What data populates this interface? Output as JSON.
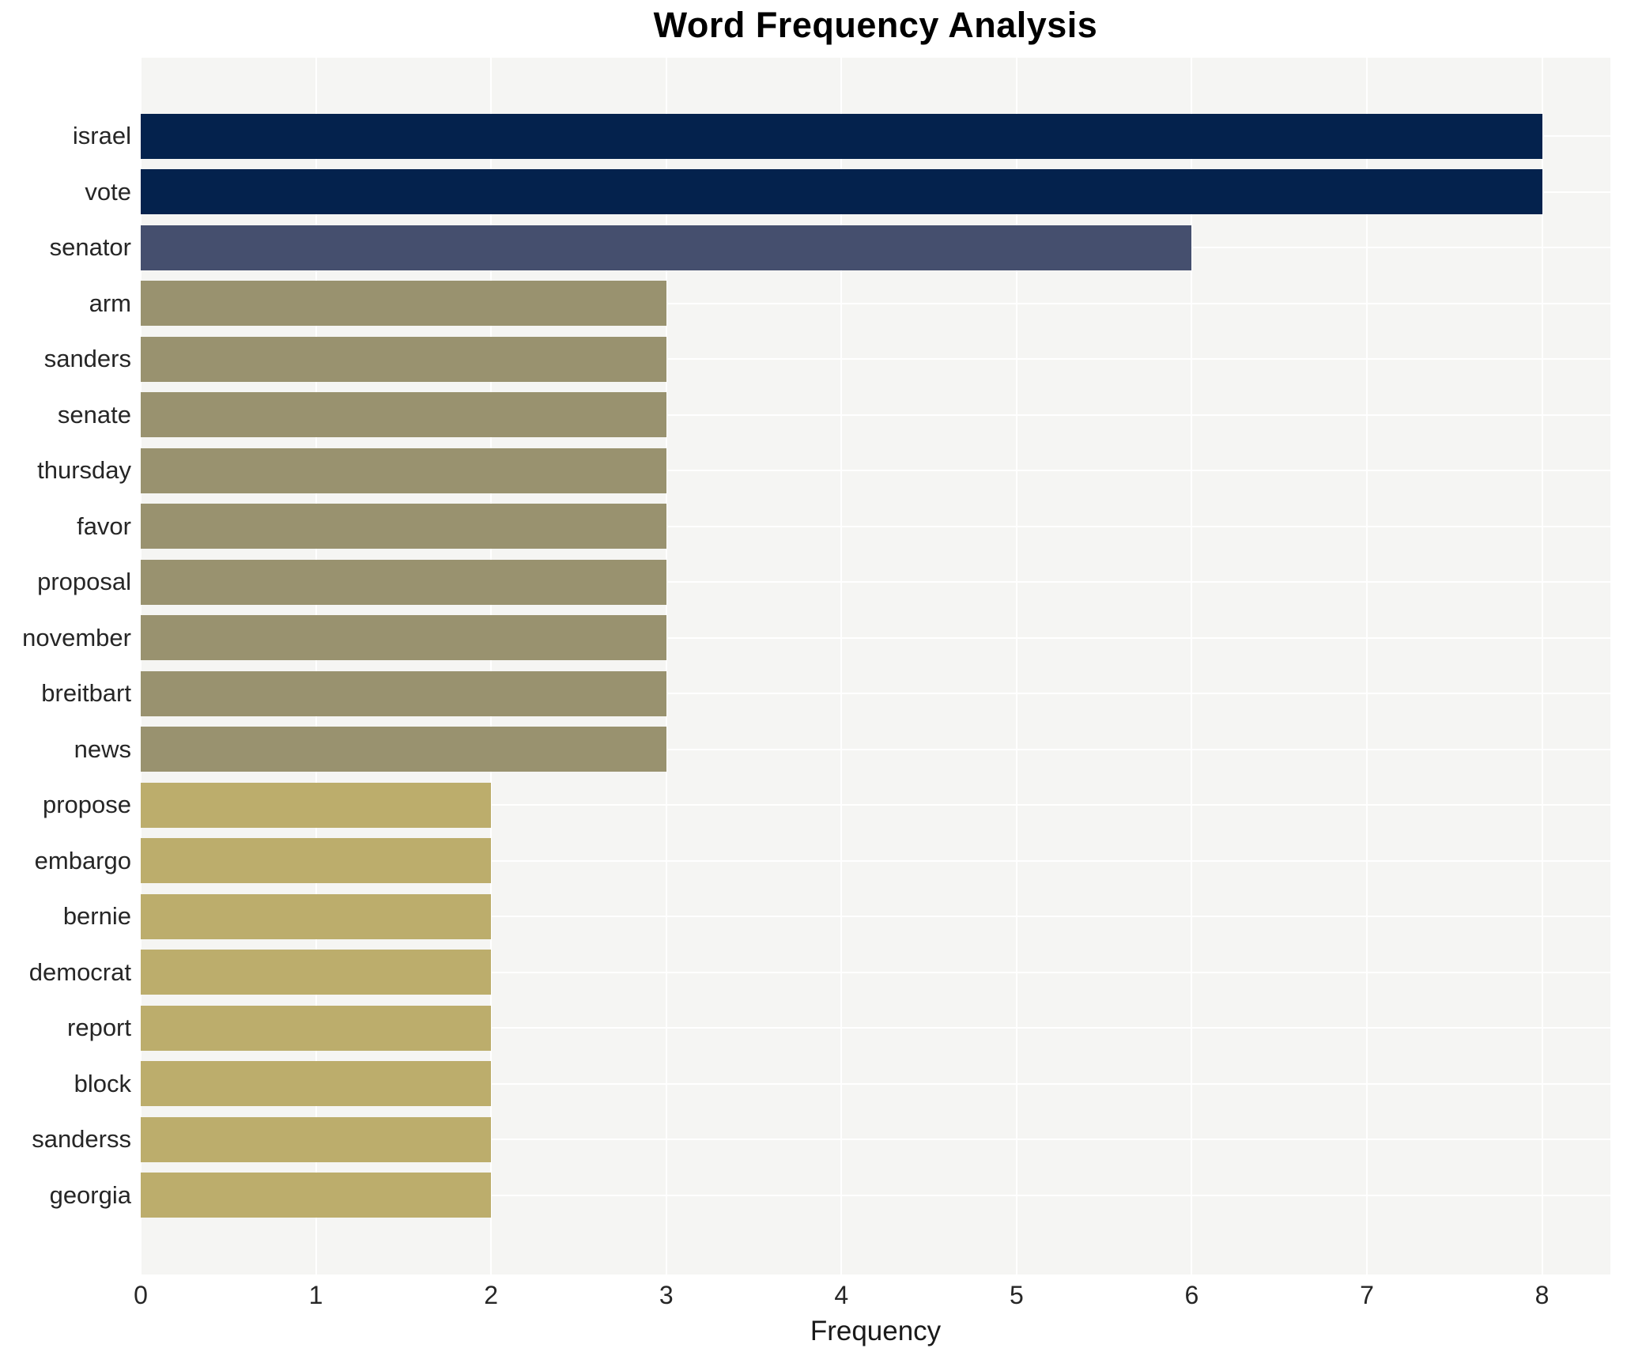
{
  "chart_data": {
    "type": "bar",
    "orientation": "horizontal",
    "title": "Word Frequency Analysis",
    "xlabel": "Frequency",
    "ylabel": "",
    "categories": [
      "israel",
      "vote",
      "senator",
      "arm",
      "sanders",
      "senate",
      "thursday",
      "favor",
      "proposal",
      "november",
      "breitbart",
      "news",
      "propose",
      "embargo",
      "bernie",
      "democrat",
      "report",
      "block",
      "sanderss",
      "georgia"
    ],
    "values": [
      8,
      8,
      6,
      3,
      3,
      3,
      3,
      3,
      3,
      3,
      3,
      3,
      2,
      2,
      2,
      2,
      2,
      2,
      2,
      2
    ],
    "xticks": [
      0,
      1,
      2,
      3,
      4,
      5,
      6,
      7,
      8
    ],
    "xlim": [
      0,
      8.39
    ],
    "grid": true,
    "legend": false,
    "colors": {
      "plot_background": "#f5f5f3",
      "gridline": "#ffffff",
      "text": "#262626",
      "value_palette": {
        "8": "#04224d",
        "6": "#454f6e",
        "3": "#99926f",
        "2": "#bcad6c"
      }
    }
  }
}
